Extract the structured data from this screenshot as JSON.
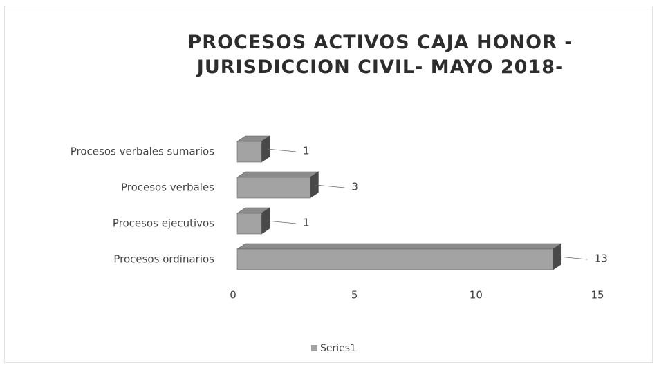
{
  "chart_data": {
    "type": "bar3d",
    "orientation": "horizontal",
    "title": "PROCESOS ACTIVOS CAJA HONOR - JURISDICCION CIVIL- MAYO 2018-",
    "categories": [
      "Procesos ordinarios",
      "Procesos ejecutivos",
      "Procesos verbales",
      "Procesos verbales sumarios"
    ],
    "series": [
      {
        "name": "Series1",
        "color": "#a3a3a3",
        "values": [
          13,
          1,
          3,
          1
        ]
      }
    ],
    "xlim": [
      0,
      15
    ],
    "xticks": [
      0,
      5,
      10,
      15
    ],
    "legend": "bottom",
    "grid": false
  }
}
